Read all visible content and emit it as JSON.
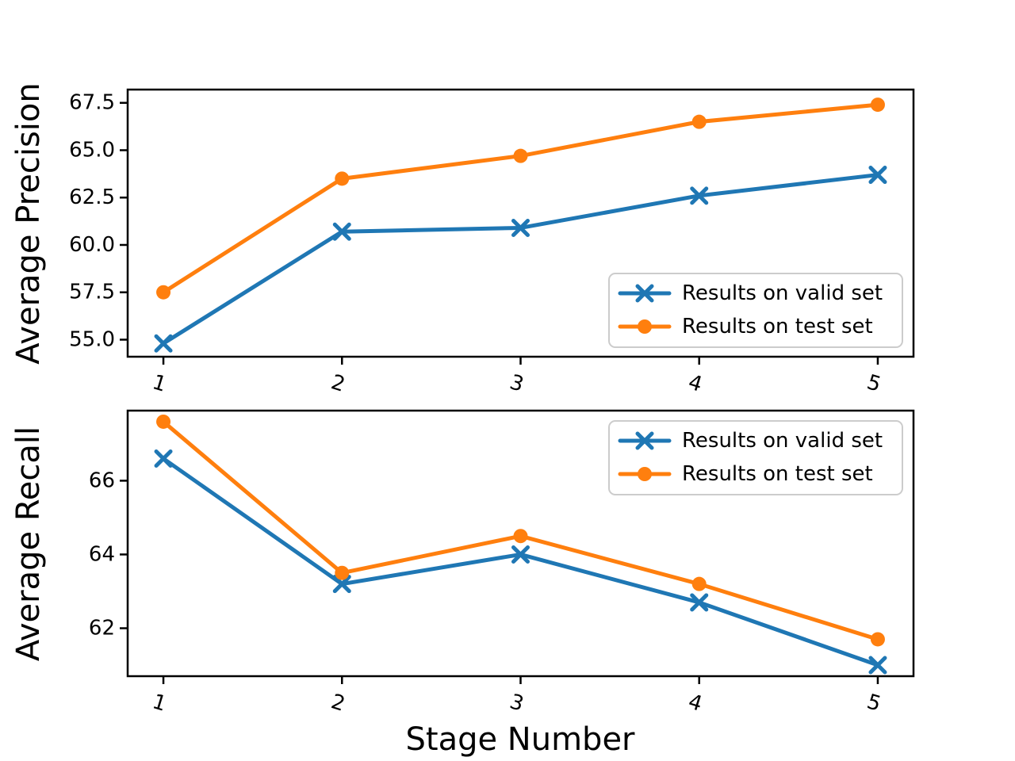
{
  "figure": {
    "background": "#ffffff",
    "text_color": "#000000",
    "axis_color": "#000000",
    "legend_border_color": "#cccccc",
    "legend_background": "#ffffff"
  },
  "chart_data": [
    {
      "type": "line",
      "title": "",
      "xlabel": "",
      "ylabel": "Average Precision",
      "x": [
        1,
        2,
        3,
        4,
        5
      ],
      "xtick_labels": [
        "1",
        "2",
        "3",
        "4",
        "5"
      ],
      "ytick_values": [
        55.0,
        57.5,
        60.0,
        62.5,
        65.0,
        67.5
      ],
      "ytick_labels": [
        "55.0",
        "57.5",
        "60.0",
        "62.5",
        "65.0",
        "67.5"
      ],
      "xlim": [
        0.8,
        5.2
      ],
      "ylim": [
        54.1,
        68.2
      ],
      "grid": false,
      "legend_position": "lower right",
      "series": [
        {
          "name": "Results on valid set",
          "color": "#1f77b4",
          "marker": "x",
          "values": [
            54.8,
            60.7,
            60.9,
            62.6,
            63.7
          ]
        },
        {
          "name": "Results on test set",
          "color": "#ff7f0e",
          "marker": "o",
          "values": [
            57.5,
            63.5,
            64.7,
            66.5,
            67.4
          ]
        }
      ]
    },
    {
      "type": "line",
      "title": "",
      "xlabel": "Stage Number",
      "ylabel": "Average Recall",
      "x": [
        1,
        2,
        3,
        4,
        5
      ],
      "xtick_labels": [
        "1",
        "2",
        "3",
        "4",
        "5"
      ],
      "ytick_values": [
        62,
        64,
        66
      ],
      "ytick_labels": [
        "62",
        "64",
        "66"
      ],
      "xlim": [
        0.8,
        5.2
      ],
      "ylim": [
        60.7,
        67.9
      ],
      "grid": false,
      "legend_position": "upper right",
      "series": [
        {
          "name": "Results on valid set",
          "color": "#1f77b4",
          "marker": "x",
          "values": [
            66.6,
            63.2,
            64.0,
            62.7,
            61.0
          ]
        },
        {
          "name": "Results on test set",
          "color": "#ff7f0e",
          "marker": "o",
          "values": [
            67.6,
            63.5,
            64.5,
            63.2,
            61.7
          ]
        }
      ]
    }
  ]
}
